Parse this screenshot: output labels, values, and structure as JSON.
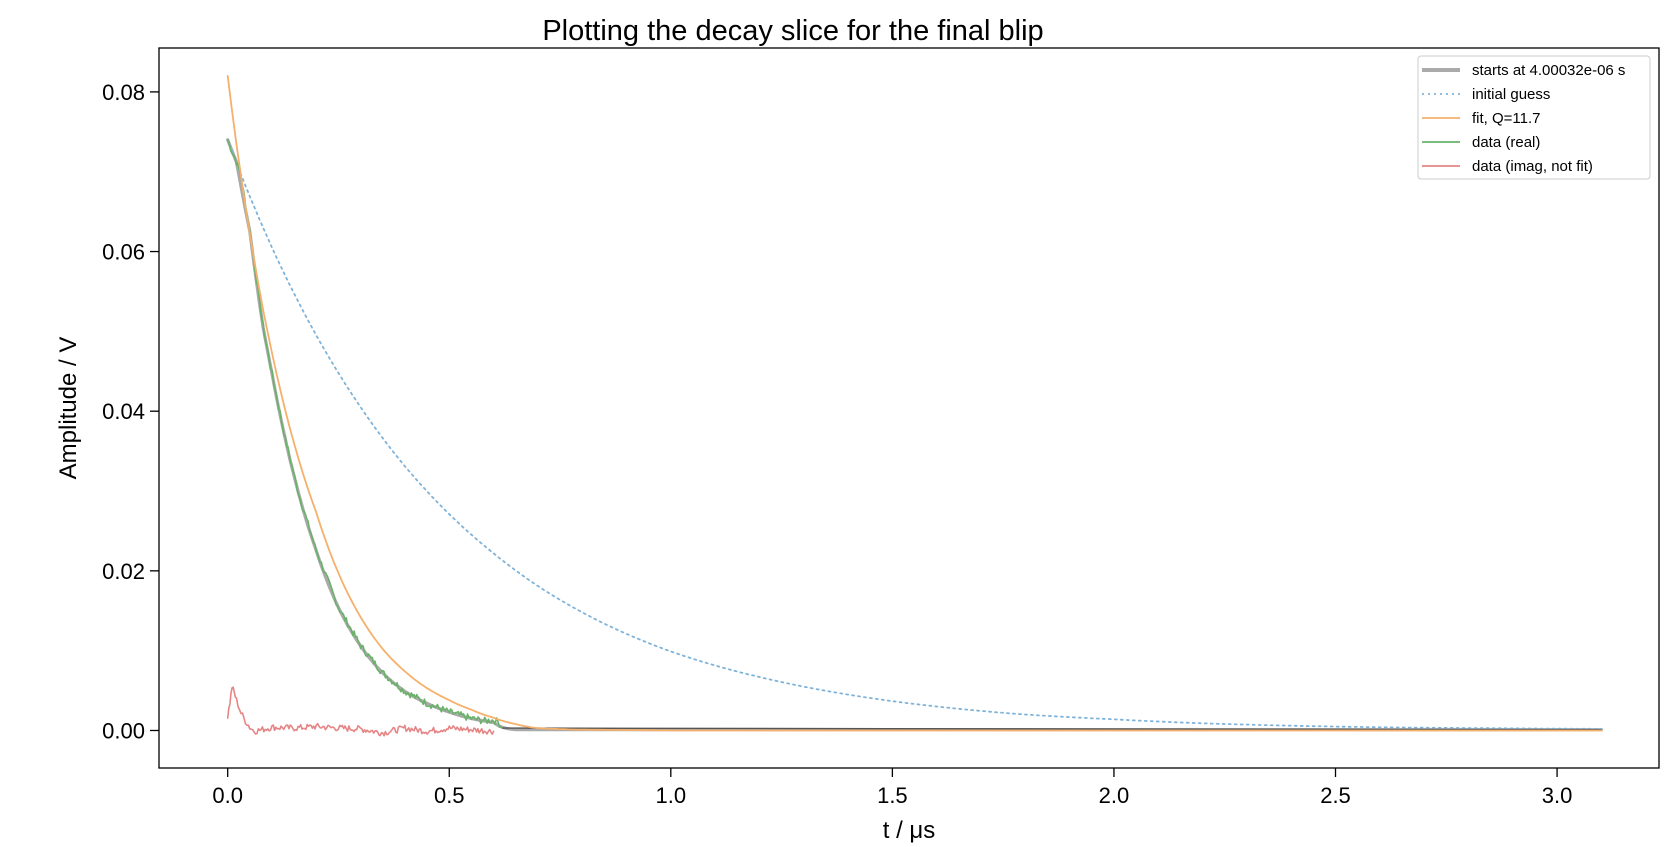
{
  "chart_data": {
    "type": "line",
    "title": "Plotting the decay slice for the final blip",
    "xlabel": "t / μs",
    "ylabel": "Amplitude / V",
    "xlim": [
      -0.155,
      3.23
    ],
    "ylim": [
      -0.0047,
      0.0855
    ],
    "x_ticks": [
      0.0,
      0.5,
      1.0,
      1.5,
      2.0,
      2.5,
      3.0
    ],
    "y_ticks": [
      0.0,
      0.02,
      0.04,
      0.06,
      0.08
    ],
    "x_tick_labels": [
      "0.0",
      "0.5",
      "1.0",
      "1.5",
      "2.0",
      "2.5",
      "3.0"
    ],
    "y_tick_labels": [
      "0.00",
      "0.02",
      "0.04",
      "0.06",
      "0.08"
    ],
    "grid": false,
    "legend_position": "top-right",
    "series": [
      {
        "name": "starts at 4.00032e-06 s",
        "color": "#aaaaaa",
        "style": "solid-thick",
        "x": [
          0.0,
          0.02,
          0.05,
          0.08,
          0.1,
          0.13,
          0.16,
          0.2,
          0.25,
          0.3,
          0.35,
          0.4,
          0.45,
          0.5,
          0.55,
          0.6,
          0.65,
          0.8,
          1.0,
          1.5,
          2.0,
          2.5,
          3.1
        ],
        "values": [
          0.074,
          0.0712,
          0.0625,
          0.0505,
          0.0447,
          0.0365,
          0.0297,
          0.0225,
          0.0154,
          0.0106,
          0.0072,
          0.0049,
          0.0034,
          0.0023,
          0.0015,
          0.001,
          0.0001,
          0.0001,
          0.0001,
          0.0001,
          0.0001,
          0.0001,
          0.0001
        ]
      },
      {
        "name": "initial guess",
        "color": "#7fb3d9",
        "style": "dotted",
        "x": [
          0.0,
          0.1,
          0.2,
          0.3,
          0.4,
          0.5,
          0.6,
          0.7,
          0.8,
          0.9,
          1.0,
          1.2,
          1.4,
          1.6,
          1.8,
          2.0,
          2.2,
          2.4,
          2.6,
          2.8,
          3.1
        ],
        "values": [
          0.074,
          0.0605,
          0.0495,
          0.0405,
          0.0331,
          0.0271,
          0.0222,
          0.0181,
          0.0148,
          0.0121,
          0.0099,
          0.0067,
          0.0045,
          0.003,
          0.002,
          0.0014,
          0.0009,
          0.0006,
          0.0004,
          0.0003,
          0.0002
        ]
      },
      {
        "name": "fit, Q=11.7",
        "color": "#f5b06b",
        "style": "solid",
        "x": [
          0.0,
          0.02,
          0.05,
          0.08,
          0.1,
          0.13,
          0.16,
          0.2,
          0.25,
          0.3,
          0.35,
          0.4,
          0.45,
          0.5,
          0.55,
          0.6,
          0.65,
          0.7,
          0.8,
          1.0,
          1.5,
          2.0,
          2.5,
          3.1
        ],
        "values": [
          0.082,
          0.0734,
          0.0622,
          0.0527,
          0.0473,
          0.0401,
          0.034,
          0.0273,
          0.0197,
          0.0142,
          0.0102,
          0.0074,
          0.0053,
          0.0038,
          0.0026,
          0.0016,
          0.0008,
          0.0003,
          0.0001,
          0.0,
          0.0,
          0.0,
          0.0,
          0.0
        ]
      },
      {
        "name": "data (real)",
        "color": "#6ab26a",
        "style": "solid-noisy",
        "x": [
          0.0,
          0.01,
          0.02,
          0.03,
          0.05,
          0.08,
          0.1,
          0.13,
          0.16,
          0.2,
          0.25,
          0.3,
          0.35,
          0.4,
          0.45,
          0.5,
          0.55,
          0.58,
          0.6,
          0.61,
          0.62
        ],
        "values": [
          0.074,
          0.0725,
          0.0712,
          0.0695,
          0.0625,
          0.0505,
          0.0447,
          0.0365,
          0.0297,
          0.0225,
          0.0154,
          0.0106,
          0.0072,
          0.0049,
          0.0034,
          0.0023,
          0.0015,
          0.0012,
          0.0013,
          0.0011,
          0.0003
        ]
      },
      {
        "name": "data (imag, not fit)",
        "color": "#e68585",
        "style": "solid-noisy",
        "x": [
          0.0,
          0.005,
          0.01,
          0.015,
          0.02,
          0.03,
          0.04,
          0.05,
          0.06,
          0.1,
          0.15,
          0.2,
          0.25,
          0.3,
          0.35,
          0.4,
          0.45,
          0.5,
          0.55,
          0.6
        ],
        "values": [
          0.0018,
          0.0035,
          0.0055,
          0.0047,
          0.0038,
          0.0022,
          0.0012,
          0.0004,
          -0.0001,
          0.0004,
          0.0003,
          0.0005,
          0.0003,
          0.0002,
          -0.0003,
          0.0003,
          -0.0001,
          0.0003,
          0.0001,
          -0.0001
        ]
      }
    ]
  }
}
